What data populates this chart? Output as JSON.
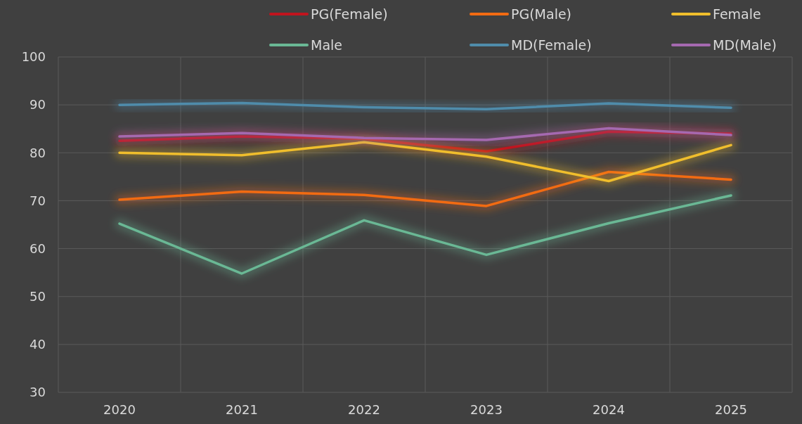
{
  "chart_data": {
    "type": "line",
    "categories": [
      "2020",
      "2021",
      "2022",
      "2023",
      "2024",
      "2025"
    ],
    "ylim": [
      30,
      100
    ],
    "yticks": [
      30,
      40,
      50,
      60,
      70,
      80,
      90,
      100
    ],
    "grid": true,
    "legend": "top",
    "marker": "none",
    "line_style": "solid",
    "series": [
      {
        "name": "PG(Female)",
        "color": "#c0141e",
        "values": [
          82.5,
          83.4,
          82.9,
          80.3,
          84.4,
          84.0
        ]
      },
      {
        "name": "PG(Male)",
        "color": "#f26b12",
        "values": [
          70.2,
          71.9,
          71.2,
          68.9,
          76.0,
          74.4
        ]
      },
      {
        "name": "Female",
        "color": "#f0be2c",
        "values": [
          80.0,
          79.5,
          82.2,
          79.2,
          74.1,
          81.6
        ]
      },
      {
        "name": "Male",
        "color": "#6ab895",
        "values": [
          65.2,
          54.8,
          65.9,
          58.7,
          65.3,
          71.1
        ]
      },
      {
        "name": "MD(Female)",
        "color": "#4f8cab",
        "values": [
          90.0,
          90.4,
          89.5,
          89.1,
          90.3,
          89.4
        ]
      },
      {
        "name": "MD(Male)",
        "color": "#a569b0",
        "values": [
          83.4,
          84.1,
          83.1,
          82.7,
          85.1,
          83.7
        ]
      }
    ]
  }
}
